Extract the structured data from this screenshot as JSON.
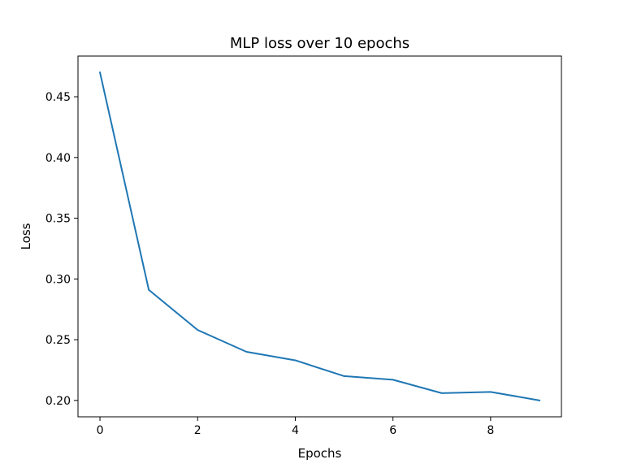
{
  "chart_data": {
    "type": "line",
    "title": "MLP loss over 10 epochs",
    "xlabel": "Epochs",
    "ylabel": "Loss",
    "x": [
      0,
      1,
      2,
      3,
      4,
      5,
      6,
      7,
      8,
      9
    ],
    "series": [
      {
        "values": [
          0.47,
          0.291,
          0.258,
          0.24,
          0.233,
          0.22,
          0.217,
          0.206,
          0.207,
          0.2
        ],
        "color": "#1f77b4"
      }
    ],
    "xlim": [
      -0.45,
      9.45
    ],
    "ylim": [
      0.1865,
      0.4835
    ],
    "xticks": [
      0,
      2,
      4,
      6,
      8
    ],
    "xtick_labels": [
      "0",
      "2",
      "4",
      "6",
      "8"
    ],
    "yticks": [
      0.2,
      0.25,
      0.3,
      0.35,
      0.4,
      0.45
    ],
    "ytick_labels": [
      "0.20",
      "0.25",
      "0.30",
      "0.35",
      "0.40",
      "0.45"
    ],
    "grid": false,
    "legend": "none"
  }
}
